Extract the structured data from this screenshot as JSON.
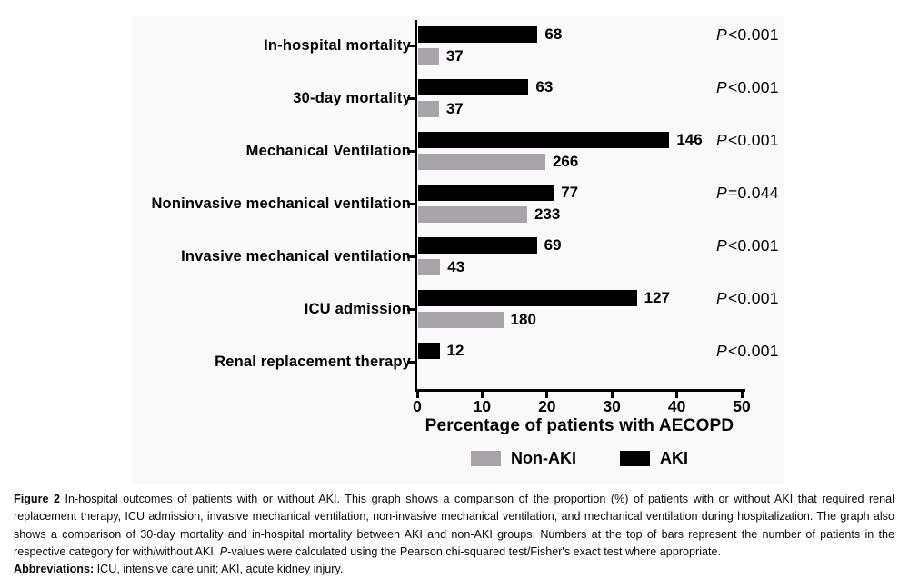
{
  "chart_data": {
    "type": "bar",
    "orientation": "horizontal",
    "xlabel": "Percentage of patients with AECOPD",
    "xlim": [
      0,
      50
    ],
    "x_ticks": [
      0,
      10,
      20,
      30,
      40,
      50
    ],
    "grid": false,
    "legend_position": "bottom",
    "categories": [
      "In-hospital mortality",
      "30-day mortality",
      "Mechanical Ventilation",
      "Noninvasive mechanical ventilation",
      "Invasive mechanical ventilation",
      "ICU admission",
      "Renal replacement therapy"
    ],
    "series": [
      {
        "name": "AKI",
        "color": "#000000",
        "counts": [
          68,
          63,
          146,
          77,
          69,
          127,
          12
        ],
        "percentages": [
          18.4,
          17.0,
          38.7,
          20.9,
          18.3,
          33.7,
          3.3
        ]
      },
      {
        "name": "Non-AKI",
        "color": "#a7a4a8",
        "counts": [
          37,
          37,
          266,
          233,
          43,
          180,
          null
        ],
        "percentages": [
          3.2,
          3.2,
          19.6,
          16.8,
          3.4,
          13.1,
          0
        ]
      }
    ],
    "p_values": [
      "P<0.001",
      "P<0.001",
      "P<0.001",
      "P=0.044",
      "P<0.001",
      "P<0.001",
      "P<0.001"
    ],
    "legend": [
      {
        "label": "Non-AKI",
        "color": "#a7a4a8"
      },
      {
        "label": "AKI",
        "color": "#000000"
      }
    ]
  },
  "caption": {
    "figure_label": "Figure 2",
    "body": " In-hospital outcomes of patients with or without AKI. This graph shows a comparison of the proportion (%) of patients with or without AKI that required renal replacement therapy, ICU admission, invasive mechanical ventilation, non-invasive mechanical ventilation, and mechanical ventilation during hospitalization. The graph also shows a comparison of 30-day mortality and in-hospital mortality between AKI and non-AKI groups. Numbers at the top of bars represent the number of patients in the respective category for with/without AKI. ",
    "p_italic": "P",
    "body2": "-values were calculated using the Pearson chi-squared test/Fisher's exact test where appropriate.",
    "abbr_label": "Abbreviations:",
    "abbr_body": " ICU, intensive care unit; AKI, acute kidney injury."
  }
}
